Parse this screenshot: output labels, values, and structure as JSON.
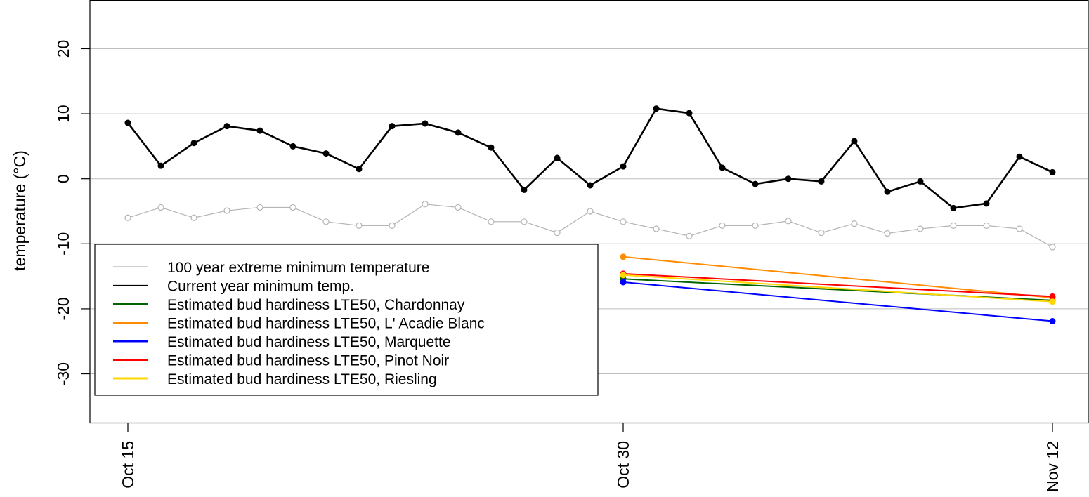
{
  "chart_data": {
    "type": "line",
    "title": "",
    "xlabel": "",
    "ylabel": "temperature (°C)",
    "ylim": [
      -37.5,
      27.5
    ],
    "yticks": [
      20,
      10,
      0,
      -10,
      -20,
      -30
    ],
    "ytick_labels": [
      "20",
      "10",
      "0",
      "-10",
      "-20",
      "-30"
    ],
    "x_range": [
      "2023-10-14",
      "2023-11-13"
    ],
    "xticks": [
      "2023-10-15",
      "2023-10-30",
      "2023-11-12"
    ],
    "xtick_labels": [
      "Oct 15",
      "Oct 30",
      "Nov 12"
    ],
    "grid": "horizontal",
    "legend_position": "left",
    "series": [
      {
        "name": "100 year extreme minimum temperature",
        "color": "#b4b4b4",
        "marker": "open-circle",
        "x": [
          "2023-10-15",
          "2023-10-16",
          "2023-10-17",
          "2023-10-18",
          "2023-10-19",
          "2023-10-20",
          "2023-10-21",
          "2023-10-22",
          "2023-10-23",
          "2023-10-24",
          "2023-10-25",
          "2023-10-26",
          "2023-10-27",
          "2023-10-28",
          "2023-10-29",
          "2023-10-30",
          "2023-10-31",
          "2023-11-01",
          "2023-11-02",
          "2023-11-03",
          "2023-11-04",
          "2023-11-05",
          "2023-11-06",
          "2023-11-07",
          "2023-11-08",
          "2023-11-09",
          "2023-11-10",
          "2023-11-11",
          "2023-11-12"
        ],
        "values": [
          -6.0,
          -4.4,
          -6.0,
          -4.9,
          -4.4,
          -4.4,
          -6.6,
          -7.2,
          -7.2,
          -3.9,
          -4.4,
          -6.6,
          -6.6,
          -8.3,
          -5.0,
          -6.6,
          -7.7,
          -8.8,
          -7.2,
          -7.2,
          -6.5,
          -8.3,
          -6.9,
          -8.4,
          -7.7,
          -7.2,
          -7.2,
          -7.7,
          -10.5
        ]
      },
      {
        "name": "Current year minimum temp.",
        "color": "#000000",
        "marker": "filled-circle",
        "x": [
          "2023-10-15",
          "2023-10-16",
          "2023-10-17",
          "2023-10-18",
          "2023-10-19",
          "2023-10-20",
          "2023-10-21",
          "2023-10-22",
          "2023-10-23",
          "2023-10-24",
          "2023-10-25",
          "2023-10-26",
          "2023-10-27",
          "2023-10-28",
          "2023-10-29",
          "2023-10-30",
          "2023-10-31",
          "2023-11-01",
          "2023-11-02",
          "2023-11-03",
          "2023-11-04",
          "2023-11-05",
          "2023-11-06",
          "2023-11-07",
          "2023-11-08",
          "2023-11-09",
          "2023-11-10",
          "2023-11-11",
          "2023-11-12"
        ],
        "values": [
          8.6,
          2.0,
          5.5,
          8.1,
          7.4,
          5.0,
          3.9,
          1.5,
          8.1,
          8.5,
          7.1,
          4.8,
          -1.7,
          3.2,
          -1.0,
          1.9,
          10.8,
          10.1,
          1.7,
          -0.8,
          0.0,
          -0.4,
          5.8,
          -2.0,
          -0.4,
          -4.5,
          -3.8,
          3.4,
          1.0
        ]
      },
      {
        "name": "Estimated bud hardiness LTE50, Chardonnay",
        "color": "#006400",
        "marker": "filled-circle",
        "x": [
          "2023-10-30",
          "2023-11-12"
        ],
        "values": [
          -15.4,
          -18.7
        ]
      },
      {
        "name": "Estimated bud hardiness LTE50, L' Acadie Blanc",
        "color": "#ff8c00",
        "marker": "filled-circle",
        "x": [
          "2023-10-30",
          "2023-11-12"
        ],
        "values": [
          -12.0,
          -18.3
        ]
      },
      {
        "name": "Estimated bud hardiness LTE50, Marquette",
        "color": "#0000ff",
        "marker": "filled-circle",
        "x": [
          "2023-10-30",
          "2023-11-12"
        ],
        "values": [
          -15.9,
          -21.9
        ]
      },
      {
        "name": "Estimated bud hardiness LTE50, Pinot Noir",
        "color": "#ff0000",
        "marker": "filled-circle",
        "x": [
          "2023-10-30",
          "2023-11-12"
        ],
        "values": [
          -14.6,
          -18.1
        ]
      },
      {
        "name": "Estimated bud hardiness LTE50, Riesling",
        "color": "#ffd700",
        "marker": "filled-circle",
        "x": [
          "2023-10-30",
          "2023-11-12"
        ],
        "values": [
          -14.8,
          -18.9
        ]
      }
    ]
  }
}
